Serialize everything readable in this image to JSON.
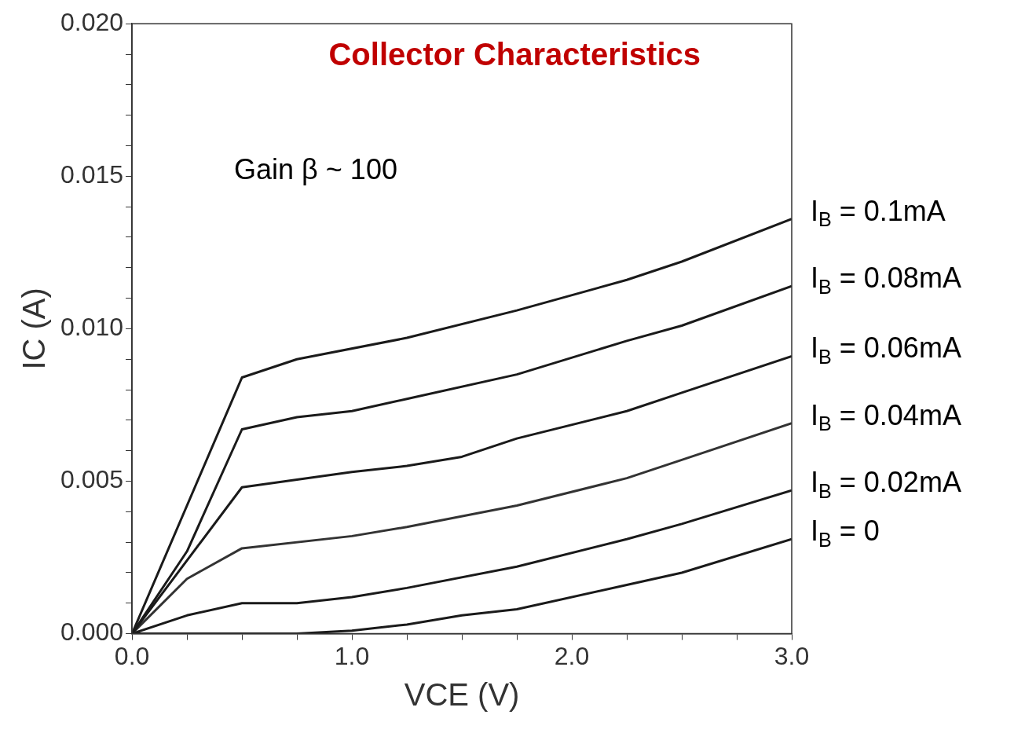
{
  "chart_data": {
    "type": "line",
    "title": "Collector Characteristics",
    "xlabel": "VCE (V)",
    "ylabel": "IC (A)",
    "annotations": [
      "Gain β ~ 100"
    ],
    "xlim": [
      0,
      3
    ],
    "xticks": [
      {
        "value": 0,
        "label": "0.0"
      },
      {
        "value": 0.25,
        "label": null
      },
      {
        "value": 0.5,
        "label": null
      },
      {
        "value": 0.75,
        "label": null
      },
      {
        "value": 1,
        "label": "1.0"
      },
      {
        "value": 1.25,
        "label": null
      },
      {
        "value": 1.5,
        "label": null
      },
      {
        "value": 1.75,
        "label": null
      },
      {
        "value": 2,
        "label": "2.0"
      },
      {
        "value": 2.25,
        "label": null
      },
      {
        "value": 2.5,
        "label": null
      },
      {
        "value": 2.75,
        "label": null
      },
      {
        "value": 3,
        "label": "3.0"
      }
    ],
    "ylim": [
      0,
      0.02
    ],
    "yticks": [
      {
        "value": 0,
        "label": "0.000"
      },
      {
        "value": 0.001,
        "label": null
      },
      {
        "value": 0.002,
        "label": null
      },
      {
        "value": 0.003,
        "label": null
      },
      {
        "value": 0.004,
        "label": null
      },
      {
        "value": 0.005,
        "label": "0.005"
      },
      {
        "value": 0.006,
        "label": null
      },
      {
        "value": 0.007,
        "label": null
      },
      {
        "value": 0.008,
        "label": null
      },
      {
        "value": 0.009,
        "label": null
      },
      {
        "value": 0.01,
        "label": "0.010"
      },
      {
        "value": 0.011,
        "label": null
      },
      {
        "value": 0.012,
        "label": null
      },
      {
        "value": 0.013,
        "label": null
      },
      {
        "value": 0.014,
        "label": null
      },
      {
        "value": 0.015,
        "label": "0.015"
      },
      {
        "value": 0.016,
        "label": null
      },
      {
        "value": 0.017,
        "label": null
      },
      {
        "value": 0.018,
        "label": null
      },
      {
        "value": 0.019,
        "label": null
      },
      {
        "value": 0.02,
        "label": "0.020"
      }
    ],
    "grid": false,
    "legend": false,
    "marker": "none",
    "line_style": "solid",
    "series": [
      {
        "name": "I$_{B}$ = 0.1mA",
        "color": "#1a1a1a",
        "x": [
          0,
          0.5,
          0.75,
          1.25,
          1.75,
          2.25,
          2.5,
          3
        ],
        "values": [
          0,
          0.0084,
          0.009,
          0.0097,
          0.0106,
          0.0116,
          0.0122,
          0.0136
        ]
      },
      {
        "name": "I$_{B}$ = 0.08mA",
        "color": "#1a1a1a",
        "x": [
          0,
          0.25,
          0.5,
          0.75,
          1,
          1.25,
          1.75,
          2.25,
          2.5,
          3
        ],
        "values": [
          0,
          0.0027,
          0.0067,
          0.0071,
          0.0073,
          0.0077,
          0.0085,
          0.0096,
          0.0101,
          0.0114
        ]
      },
      {
        "name": "I$_{B}$ = 0.06mA",
        "color": "#1a1a1a",
        "x": [
          0,
          0.25,
          0.5,
          1,
          1.25,
          1.5,
          1.75,
          2.25,
          2.5,
          3
        ],
        "values": [
          0,
          0.0024,
          0.0048,
          0.0053,
          0.0055,
          0.0058,
          0.0064,
          0.0073,
          0.0079,
          0.0091
        ]
      },
      {
        "name": "I$_{B}$ = 0.04mA",
        "color": "#333333",
        "x": [
          0,
          0.25,
          0.5,
          1,
          1.25,
          1.75,
          2.25,
          2.5,
          3
        ],
        "values": [
          0,
          0.0018,
          0.0028,
          0.0032,
          0.0035,
          0.0042,
          0.0051,
          0.0057,
          0.0069
        ]
      },
      {
        "name": "I$_{B}$ = 0.02mA",
        "color": "#1a1a1a",
        "x": [
          0,
          0.25,
          0.5,
          0.75,
          1,
          1.25,
          1.75,
          2.25,
          2.5,
          3
        ],
        "values": [
          0,
          0.0006,
          0.001,
          0.001,
          0.0012,
          0.0015,
          0.0022,
          0.0031,
          0.0036,
          0.0047
        ]
      },
      {
        "name": "I$_{B}$ = 0",
        "color": "#1a1a1a",
        "x": [
          0,
          0.5,
          0.75,
          1,
          1.25,
          1.5,
          1.75,
          2.25,
          2.5,
          3
        ],
        "values": [
          0,
          0,
          0,
          0.0001,
          0.0003,
          0.0006,
          0.0008,
          0.0016,
          0.002,
          0.0031
        ]
      }
    ]
  }
}
